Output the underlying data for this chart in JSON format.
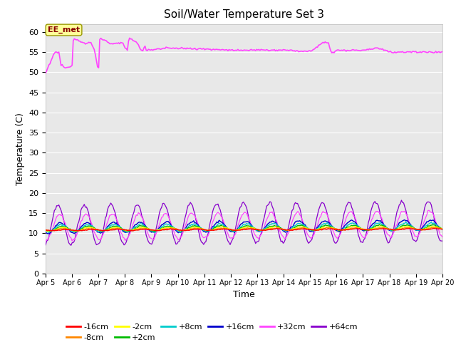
{
  "title": "Soil/Water Temperature Set 3",
  "xlabel": "Time",
  "ylabel": "Temperature (C)",
  "ylim": [
    0,
    62
  ],
  "yticks": [
    0,
    5,
    10,
    15,
    20,
    25,
    30,
    35,
    40,
    45,
    50,
    55,
    60
  ],
  "x_start_day": 5,
  "x_end_day": 20,
  "x_tick_days": [
    5,
    6,
    7,
    8,
    9,
    10,
    11,
    12,
    13,
    14,
    15,
    16,
    17,
    18,
    19,
    20
  ],
  "x_tick_labels": [
    "Apr 5",
    "Apr 6",
    "Apr 7",
    "Apr 8",
    "Apr 9",
    "Apr 10",
    "Apr 11",
    "Apr 12",
    "Apr 13",
    "Apr 14",
    "Apr 15",
    "Apr 16",
    "Apr 17",
    "Apr 18",
    "Apr 19",
    "Apr 20"
  ],
  "background_color": "#e8e8e8",
  "series_colors": {
    "-16cm": "#ff0000",
    "-8cm": "#ff8800",
    "-2cm": "#ffff00",
    "+2cm": "#00bb00",
    "+8cm": "#00cccc",
    "+16cm": "#0000cc",
    "+32cm": "#ff44ff",
    "+64cm": "#8800cc",
    "EE_met": "#ff44ff"
  },
  "annotation_text": "EE_met",
  "figsize": [
    6.4,
    4.8
  ],
  "dpi": 100
}
